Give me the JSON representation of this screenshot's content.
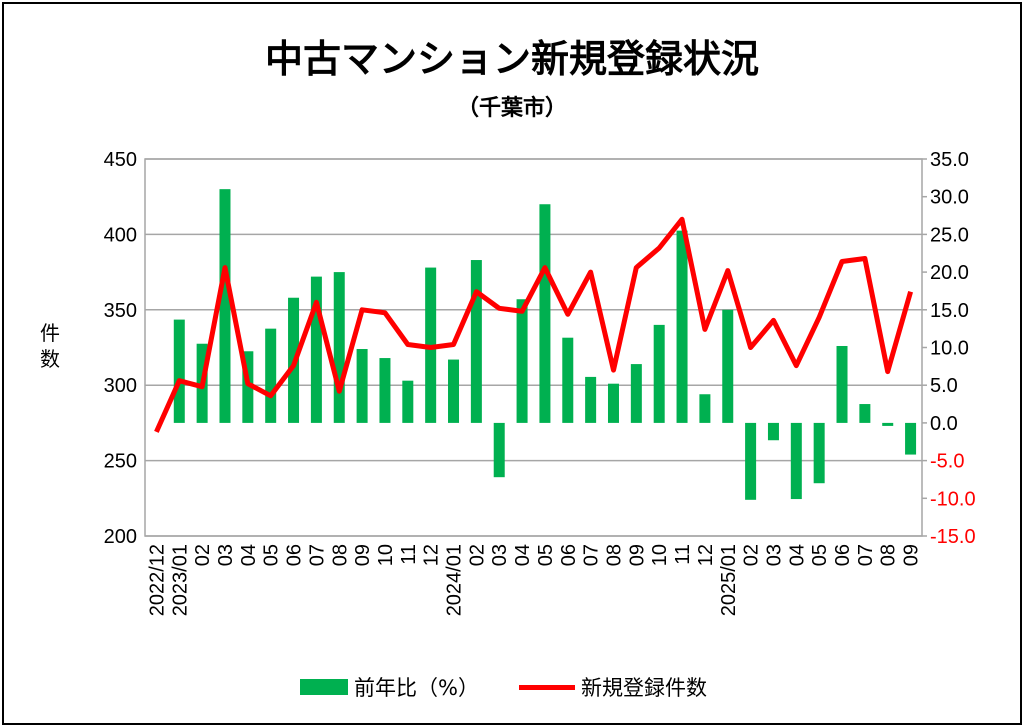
{
  "chart_data": {
    "type": "bar+line",
    "title": "中古マンション新規登録状況",
    "subtitle": "（千葉市）",
    "ylabel": "件数",
    "categories": [
      "2022/12",
      "2023/01",
      "02",
      "03",
      "04",
      "05",
      "06",
      "07",
      "08",
      "09",
      "10",
      "11",
      "12",
      "2024/01",
      "02",
      "03",
      "04",
      "05",
      "06",
      "07",
      "08",
      "09",
      "10",
      "11",
      "12",
      "2025/01",
      "02",
      "03",
      "04",
      "05",
      "06",
      "07",
      "08",
      "09"
    ],
    "series": [
      {
        "name": "前年比（%）",
        "type": "bar",
        "axis": "right",
        "color": "#00b050",
        "values": [
          null,
          13.7,
          10.5,
          31.0,
          9.5,
          12.5,
          16.6,
          19.4,
          20.0,
          9.8,
          8.6,
          5.6,
          20.6,
          8.4,
          21.6,
          -7.2,
          16.4,
          29.0,
          11.3,
          6.1,
          5.2,
          7.8,
          13.0,
          25.5,
          3.8,
          15.0,
          -10.2,
          -2.3,
          -10.1,
          -8.0,
          10.2,
          2.5,
          -0.4,
          -4.2
        ]
      },
      {
        "name": "新規登録件数",
        "type": "line",
        "axis": "left",
        "color": "#ff0000",
        "values": [
          269,
          303,
          299,
          378,
          301,
          293,
          313,
          355,
          296,
          350,
          348,
          327,
          325,
          327,
          362,
          351,
          349,
          378,
          347,
          375,
          310,
          378,
          391,
          410,
          337,
          376,
          325,
          343,
          313,
          345,
          382,
          384,
          309,
          362
        ]
      }
    ],
    "left_axis": {
      "min": 200,
      "max": 450,
      "step": 50,
      "ticks": [
        "200",
        "250",
        "300",
        "350",
        "400",
        "450"
      ]
    },
    "right_axis": {
      "min": -15,
      "max": 35,
      "step": 5,
      "ticks": [
        "-15.0",
        "-10.0",
        "-5.0",
        "0.0",
        "5.0",
        "10.0",
        "15.0",
        "20.0",
        "25.0",
        "30.0",
        "35.0"
      ],
      "negative_color": "#ff0000"
    },
    "grid": true,
    "legend_position": "bottom"
  }
}
